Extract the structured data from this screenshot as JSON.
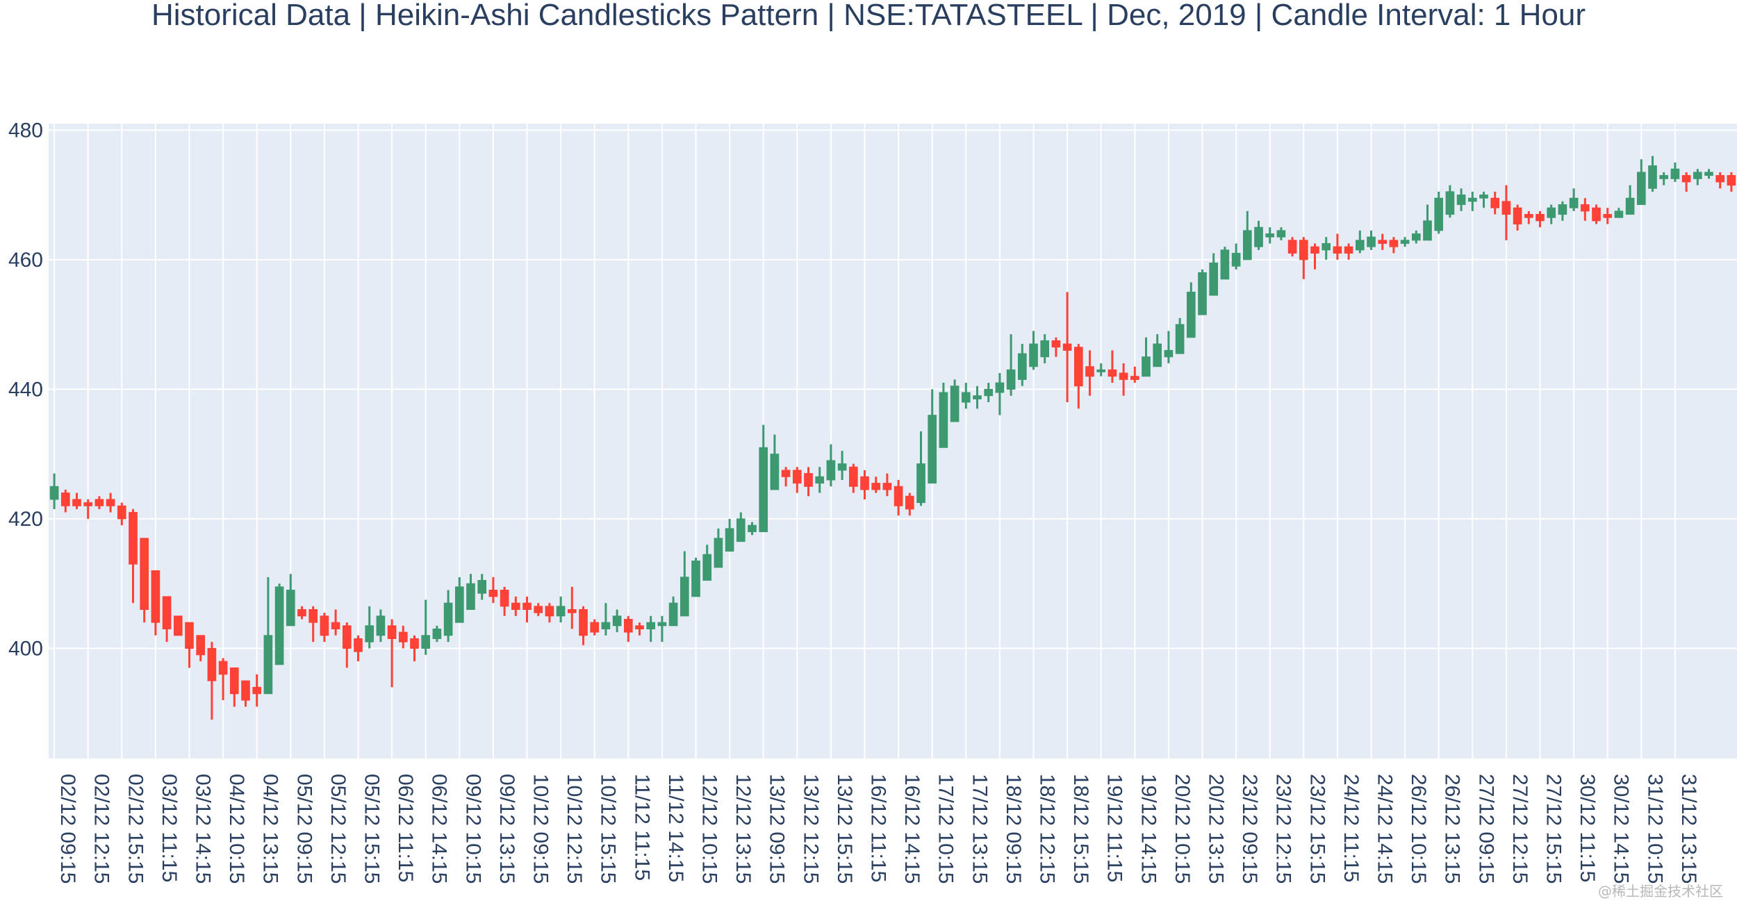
{
  "chart_data": {
    "type": "candlestick",
    "title": "Historical Data | Heikin-Ashi Candlesticks Pattern | NSE:TATASTEEL | Dec, 2019 | Candle Interval: 1 Hour",
    "xlabel": "",
    "ylabel": "",
    "ylim": [
      383,
      481
    ],
    "y_ticks": [
      400,
      420,
      440,
      460,
      480
    ],
    "grid": true,
    "colors": {
      "increasing": "#3d9970",
      "decreasing": "#ff4136",
      "plot_bg": "#e5ecf6",
      "grid": "#ffffff",
      "text": "#2a3f5f"
    },
    "x_tick_labels": [
      "02/12 09:15",
      "02/12 12:15",
      "02/12 15:15",
      "03/12 11:15",
      "03/12 14:15",
      "04/12 10:15",
      "04/12 13:15",
      "05/12 09:15",
      "05/12 12:15",
      "05/12 15:15",
      "06/12 11:15",
      "06/12 14:15",
      "09/12 10:15",
      "09/12 13:15",
      "10/12 09:15",
      "10/12 12:15",
      "10/12 15:15",
      "11/12 11:15",
      "11/12 14:15",
      "12/12 10:15",
      "12/12 13:15",
      "13/12 09:15",
      "13/12 12:15",
      "13/12 15:15",
      "16/12 11:15",
      "16/12 14:15",
      "17/12 10:15",
      "17/12 13:15",
      "18/12 09:15",
      "18/12 12:15",
      "18/12 15:15",
      "19/12 11:15",
      "19/12 14:15",
      "20/12 10:15",
      "20/12 13:15",
      "23/12 09:15",
      "23/12 12:15",
      "23/12 15:15",
      "24/12 11:15",
      "24/12 14:15",
      "26/12 10:15",
      "26/12 13:15",
      "27/12 09:15",
      "27/12 12:15",
      "27/12 15:15",
      "30/12 11:15",
      "30/12 14:15",
      "31/12 10:15",
      "31/12 13:15"
    ],
    "x_tick_every": 3,
    "candles": [
      {
        "o": 423.0,
        "h": 427.0,
        "l": 421.5,
        "c": 425.0
      },
      {
        "o": 424.0,
        "h": 424.5,
        "l": 421.0,
        "c": 422.0
      },
      {
        "o": 423.0,
        "h": 424.0,
        "l": 421.5,
        "c": 422.0
      },
      {
        "o": 422.5,
        "h": 423.0,
        "l": 420.0,
        "c": 422.0
      },
      {
        "o": 423.0,
        "h": 423.5,
        "l": 421.5,
        "c": 422.0
      },
      {
        "o": 423.0,
        "h": 424.0,
        "l": 421.0,
        "c": 422.0
      },
      {
        "o": 422.0,
        "h": 422.5,
        "l": 419.0,
        "c": 420.0
      },
      {
        "o": 421.0,
        "h": 421.5,
        "l": 407.0,
        "c": 413.0
      },
      {
        "o": 417.0,
        "h": 417.0,
        "l": 404.0,
        "c": 406.0
      },
      {
        "o": 412.0,
        "h": 412.0,
        "l": 402.0,
        "c": 404.0
      },
      {
        "o": 408.0,
        "h": 408.0,
        "l": 401.0,
        "c": 403.0
      },
      {
        "o": 405.0,
        "h": 405.0,
        "l": 402.0,
        "c": 402.0
      },
      {
        "o": 404.0,
        "h": 404.0,
        "l": 397.0,
        "c": 400.0
      },
      {
        "o": 402.0,
        "h": 402.0,
        "l": 398.0,
        "c": 399.0
      },
      {
        "o": 400.0,
        "h": 401.0,
        "l": 389.0,
        "c": 395.0
      },
      {
        "o": 398.0,
        "h": 398.5,
        "l": 392.0,
        "c": 396.0
      },
      {
        "o": 397.0,
        "h": 397.0,
        "l": 391.0,
        "c": 393.0
      },
      {
        "o": 395.0,
        "h": 395.0,
        "l": 391.0,
        "c": 392.0
      },
      {
        "o": 394.0,
        "h": 396.0,
        "l": 391.0,
        "c": 393.0
      },
      {
        "o": 393.0,
        "h": 411.0,
        "l": 393.0,
        "c": 402.0
      },
      {
        "o": 397.5,
        "h": 410.0,
        "l": 397.5,
        "c": 409.5
      },
      {
        "o": 403.5,
        "h": 411.5,
        "l": 403.5,
        "c": 409.0
      },
      {
        "o": 406.0,
        "h": 406.5,
        "l": 404.5,
        "c": 405.0
      },
      {
        "o": 406.0,
        "h": 406.5,
        "l": 401.0,
        "c": 404.0
      },
      {
        "o": 405.0,
        "h": 405.5,
        "l": 401.0,
        "c": 402.0
      },
      {
        "o": 404.0,
        "h": 406.0,
        "l": 402.0,
        "c": 403.0
      },
      {
        "o": 403.5,
        "h": 404.0,
        "l": 397.0,
        "c": 400.0
      },
      {
        "o": 401.5,
        "h": 402.0,
        "l": 398.0,
        "c": 399.5
      },
      {
        "o": 401.0,
        "h": 406.5,
        "l": 400.0,
        "c": 403.5
      },
      {
        "o": 402.0,
        "h": 406.0,
        "l": 401.0,
        "c": 405.0
      },
      {
        "o": 403.5,
        "h": 404.5,
        "l": 394.0,
        "c": 401.5
      },
      {
        "o": 402.5,
        "h": 403.5,
        "l": 400.0,
        "c": 401.0
      },
      {
        "o": 401.5,
        "h": 402.0,
        "l": 398.0,
        "c": 400.0
      },
      {
        "o": 400.0,
        "h": 407.5,
        "l": 399.0,
        "c": 402.0
      },
      {
        "o": 401.5,
        "h": 403.5,
        "l": 401.0,
        "c": 403.0
      },
      {
        "o": 402.0,
        "h": 409.0,
        "l": 401.0,
        "c": 407.0
      },
      {
        "o": 404.0,
        "h": 411.0,
        "l": 404.0,
        "c": 409.5
      },
      {
        "o": 406.0,
        "h": 411.5,
        "l": 406.0,
        "c": 410.0
      },
      {
        "o": 408.5,
        "h": 411.5,
        "l": 407.5,
        "c": 410.5
      },
      {
        "o": 409.0,
        "h": 411.0,
        "l": 407.0,
        "c": 408.0
      },
      {
        "o": 409.0,
        "h": 409.5,
        "l": 405.0,
        "c": 406.5
      },
      {
        "o": 407.0,
        "h": 408.0,
        "l": 405.0,
        "c": 406.0
      },
      {
        "o": 407.0,
        "h": 408.0,
        "l": 404.0,
        "c": 406.0
      },
      {
        "o": 406.5,
        "h": 407.0,
        "l": 405.0,
        "c": 405.5
      },
      {
        "o": 406.5,
        "h": 407.0,
        "l": 404.0,
        "c": 405.0
      },
      {
        "o": 405.0,
        "h": 408.0,
        "l": 404.0,
        "c": 406.5
      },
      {
        "o": 406.0,
        "h": 409.5,
        "l": 403.0,
        "c": 405.5
      },
      {
        "o": 406.0,
        "h": 406.5,
        "l": 400.5,
        "c": 402.0
      },
      {
        "o": 404.0,
        "h": 404.5,
        "l": 402.0,
        "c": 402.5
      },
      {
        "o": 403.0,
        "h": 407.0,
        "l": 402.0,
        "c": 404.0
      },
      {
        "o": 403.5,
        "h": 406.0,
        "l": 402.5,
        "c": 405.0
      },
      {
        "o": 404.5,
        "h": 405.0,
        "l": 401.0,
        "c": 402.5
      },
      {
        "o": 403.5,
        "h": 404.0,
        "l": 402.0,
        "c": 403.0
      },
      {
        "o": 403.0,
        "h": 405.0,
        "l": 401.0,
        "c": 404.0
      },
      {
        "o": 403.5,
        "h": 405.0,
        "l": 401.0,
        "c": 404.0
      },
      {
        "o": 403.5,
        "h": 408.0,
        "l": 403.5,
        "c": 407.0
      },
      {
        "o": 405.0,
        "h": 415.0,
        "l": 405.0,
        "c": 411.0
      },
      {
        "o": 408.0,
        "h": 414.0,
        "l": 408.0,
        "c": 413.5
      },
      {
        "o": 410.5,
        "h": 416.0,
        "l": 410.5,
        "c": 414.5
      },
      {
        "o": 412.5,
        "h": 418.5,
        "l": 412.5,
        "c": 417.0
      },
      {
        "o": 415.0,
        "h": 420.0,
        "l": 415.0,
        "c": 418.5
      },
      {
        "o": 416.5,
        "h": 421.0,
        "l": 416.5,
        "c": 420.0
      },
      {
        "o": 418.0,
        "h": 419.5,
        "l": 417.5,
        "c": 419.0
      },
      {
        "o": 418.0,
        "h": 434.5,
        "l": 418.0,
        "c": 431.0
      },
      {
        "o": 424.5,
        "h": 433.0,
        "l": 424.5,
        "c": 430.0
      },
      {
        "o": 427.5,
        "h": 428.0,
        "l": 425.0,
        "c": 426.5
      },
      {
        "o": 427.5,
        "h": 428.0,
        "l": 424.0,
        "c": 425.5
      },
      {
        "o": 427.0,
        "h": 428.0,
        "l": 423.5,
        "c": 425.0
      },
      {
        "o": 425.5,
        "h": 428.0,
        "l": 424.0,
        "c": 426.5
      },
      {
        "o": 426.0,
        "h": 431.5,
        "l": 425.0,
        "c": 429.0
      },
      {
        "o": 427.5,
        "h": 430.5,
        "l": 426.0,
        "c": 428.5
      },
      {
        "o": 428.0,
        "h": 428.5,
        "l": 424.0,
        "c": 425.0
      },
      {
        "o": 426.5,
        "h": 427.5,
        "l": 423.0,
        "c": 424.5
      },
      {
        "o": 425.5,
        "h": 426.5,
        "l": 424.0,
        "c": 424.5
      },
      {
        "o": 425.5,
        "h": 427.0,
        "l": 423.5,
        "c": 424.5
      },
      {
        "o": 425.0,
        "h": 426.0,
        "l": 420.5,
        "c": 422.0
      },
      {
        "o": 423.5,
        "h": 424.0,
        "l": 420.5,
        "c": 421.5
      },
      {
        "o": 422.5,
        "h": 433.5,
        "l": 422.0,
        "c": 428.5
      },
      {
        "o": 425.5,
        "h": 440.0,
        "l": 425.5,
        "c": 436.0
      },
      {
        "o": 431.0,
        "h": 441.0,
        "l": 431.0,
        "c": 439.5
      },
      {
        "o": 435.0,
        "h": 441.5,
        "l": 435.0,
        "c": 440.5
      },
      {
        "o": 438.0,
        "h": 441.0,
        "l": 437.0,
        "c": 439.5
      },
      {
        "o": 438.5,
        "h": 440.5,
        "l": 437.0,
        "c": 439.0
      },
      {
        "o": 439.0,
        "h": 441.0,
        "l": 438.0,
        "c": 440.0
      },
      {
        "o": 439.5,
        "h": 442.5,
        "l": 436.0,
        "c": 441.0
      },
      {
        "o": 440.0,
        "h": 448.5,
        "l": 439.0,
        "c": 443.0
      },
      {
        "o": 441.5,
        "h": 447.0,
        "l": 440.5,
        "c": 445.5
      },
      {
        "o": 443.5,
        "h": 449.0,
        "l": 443.0,
        "c": 447.0
      },
      {
        "o": 445.0,
        "h": 448.5,
        "l": 444.0,
        "c": 447.5
      },
      {
        "o": 447.5,
        "h": 448.0,
        "l": 445.0,
        "c": 446.5
      },
      {
        "o": 447.0,
        "h": 455.0,
        "l": 438.0,
        "c": 446.0
      },
      {
        "o": 446.5,
        "h": 447.0,
        "l": 437.0,
        "c": 440.5
      },
      {
        "o": 443.5,
        "h": 446.0,
        "l": 439.0,
        "c": 442.0
      },
      {
        "o": 443.0,
        "h": 444.0,
        "l": 442.0,
        "c": 443.0
      },
      {
        "o": 443.0,
        "h": 446.0,
        "l": 441.0,
        "c": 442.0
      },
      {
        "o": 442.5,
        "h": 444.0,
        "l": 439.0,
        "c": 441.5
      },
      {
        "o": 442.0,
        "h": 443.5,
        "l": 441.0,
        "c": 441.5
      },
      {
        "o": 442.0,
        "h": 448.0,
        "l": 442.0,
        "c": 445.0
      },
      {
        "o": 443.5,
        "h": 448.5,
        "l": 443.5,
        "c": 447.0
      },
      {
        "o": 445.0,
        "h": 449.0,
        "l": 444.0,
        "c": 446.0
      },
      {
        "o": 445.5,
        "h": 451.0,
        "l": 445.5,
        "c": 450.0
      },
      {
        "o": 448.0,
        "h": 456.5,
        "l": 448.0,
        "c": 455.0
      },
      {
        "o": 451.5,
        "h": 458.5,
        "l": 451.5,
        "c": 458.0
      },
      {
        "o": 454.5,
        "h": 461.0,
        "l": 454.5,
        "c": 459.5
      },
      {
        "o": 457.0,
        "h": 462.0,
        "l": 457.0,
        "c": 461.5
      },
      {
        "o": 459.0,
        "h": 462.5,
        "l": 458.5,
        "c": 461.0
      },
      {
        "o": 460.0,
        "h": 467.5,
        "l": 460.0,
        "c": 464.5
      },
      {
        "o": 462.0,
        "h": 466.0,
        "l": 461.5,
        "c": 465.0
      },
      {
        "o": 463.5,
        "h": 465.0,
        "l": 462.5,
        "c": 464.0
      },
      {
        "o": 463.5,
        "h": 465.0,
        "l": 463.0,
        "c": 464.5
      },
      {
        "o": 463.0,
        "h": 463.5,
        "l": 460.5,
        "c": 461.0
      },
      {
        "o": 463.0,
        "h": 463.5,
        "l": 457.0,
        "c": 460.0
      },
      {
        "o": 462.0,
        "h": 462.5,
        "l": 458.5,
        "c": 461.0
      },
      {
        "o": 461.5,
        "h": 463.5,
        "l": 460.0,
        "c": 462.5
      },
      {
        "o": 462.0,
        "h": 464.0,
        "l": 460.0,
        "c": 461.0
      },
      {
        "o": 462.0,
        "h": 462.5,
        "l": 460.0,
        "c": 461.0
      },
      {
        "o": 461.5,
        "h": 464.5,
        "l": 461.0,
        "c": 463.0
      },
      {
        "o": 462.0,
        "h": 464.5,
        "l": 461.5,
        "c": 463.5
      },
      {
        "o": 463.0,
        "h": 464.0,
        "l": 461.5,
        "c": 462.5
      },
      {
        "o": 463.0,
        "h": 463.5,
        "l": 461.0,
        "c": 462.0
      },
      {
        "o": 462.5,
        "h": 463.5,
        "l": 462.0,
        "c": 463.0
      },
      {
        "o": 463.0,
        "h": 464.5,
        "l": 462.5,
        "c": 464.0
      },
      {
        "o": 463.0,
        "h": 468.5,
        "l": 463.0,
        "c": 466.0
      },
      {
        "o": 464.5,
        "h": 470.5,
        "l": 464.0,
        "c": 469.5
      },
      {
        "o": 467.0,
        "h": 471.5,
        "l": 466.5,
        "c": 470.5
      },
      {
        "o": 468.5,
        "h": 471.0,
        "l": 467.5,
        "c": 470.0
      },
      {
        "o": 469.0,
        "h": 470.5,
        "l": 467.5,
        "c": 469.5
      },
      {
        "o": 469.5,
        "h": 470.5,
        "l": 468.0,
        "c": 470.0
      },
      {
        "o": 469.5,
        "h": 470.5,
        "l": 467.0,
        "c": 468.0
      },
      {
        "o": 469.0,
        "h": 471.5,
        "l": 463.0,
        "c": 467.0
      },
      {
        "o": 468.0,
        "h": 468.5,
        "l": 464.5,
        "c": 465.5
      },
      {
        "o": 467.0,
        "h": 467.5,
        "l": 465.5,
        "c": 466.5
      },
      {
        "o": 467.0,
        "h": 467.5,
        "l": 465.0,
        "c": 466.0
      },
      {
        "o": 466.5,
        "h": 468.5,
        "l": 465.5,
        "c": 468.0
      },
      {
        "o": 467.0,
        "h": 469.0,
        "l": 466.0,
        "c": 468.5
      },
      {
        "o": 468.0,
        "h": 471.0,
        "l": 467.5,
        "c": 469.5
      },
      {
        "o": 468.5,
        "h": 469.5,
        "l": 466.0,
        "c": 467.5
      },
      {
        "o": 468.0,
        "h": 468.5,
        "l": 465.5,
        "c": 466.0
      },
      {
        "o": 467.0,
        "h": 468.0,
        "l": 465.5,
        "c": 466.5
      },
      {
        "o": 466.5,
        "h": 468.0,
        "l": 466.5,
        "c": 467.5
      },
      {
        "o": 467.0,
        "h": 471.5,
        "l": 467.0,
        "c": 469.5
      },
      {
        "o": 468.5,
        "h": 475.5,
        "l": 468.5,
        "c": 473.5
      },
      {
        "o": 471.0,
        "h": 476.0,
        "l": 470.5,
        "c": 474.5
      },
      {
        "o": 472.5,
        "h": 473.5,
        "l": 471.5,
        "c": 473.0
      },
      {
        "o": 472.5,
        "h": 475.0,
        "l": 472.0,
        "c": 474.0
      },
      {
        "o": 473.0,
        "h": 473.5,
        "l": 470.5,
        "c": 472.0
      },
      {
        "o": 472.5,
        "h": 474.0,
        "l": 471.5,
        "c": 473.5
      },
      {
        "o": 473.0,
        "h": 474.0,
        "l": 472.5,
        "c": 473.5
      },
      {
        "o": 473.0,
        "h": 473.5,
        "l": 471.0,
        "c": 472.0
      },
      {
        "o": 473.0,
        "h": 473.5,
        "l": 470.5,
        "c": 471.5
      }
    ]
  },
  "watermark": "@稀土掘金技术社区"
}
